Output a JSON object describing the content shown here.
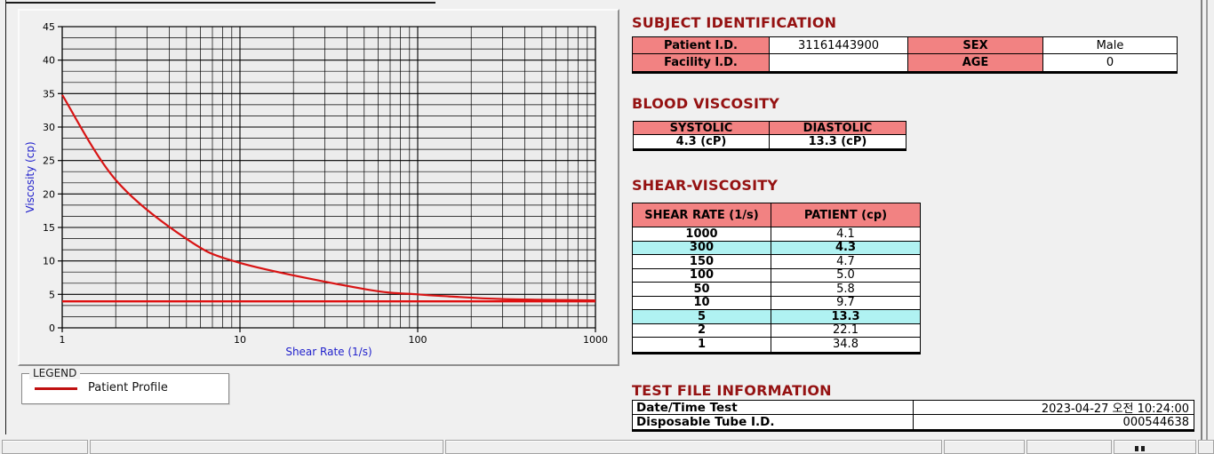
{
  "colors": {
    "title_red": "#951212",
    "header_pink": "#f28282",
    "highlight_cyan": "#b0f2f2",
    "curve_red": "#d81414",
    "axis_label_blue": "#2121cc"
  },
  "subject_identification": {
    "title": "SUBJECT IDENTIFICATION",
    "patient_id_label": "Patient I.D.",
    "patient_id_value": "31161443900",
    "sex_label": "SEX",
    "sex_value": "Male",
    "facility_id_label": "Facility I.D.",
    "facility_id_value": "",
    "age_label": "AGE",
    "age_value": "0"
  },
  "blood_viscosity": {
    "title": "BLOOD VISCOSITY",
    "systolic_label": "SYSTOLIC",
    "diastolic_label": "DIASTOLIC",
    "systolic_value": "4.3 (cP)",
    "diastolic_value": "13.3 (cP)"
  },
  "shear_viscosity": {
    "title": "SHEAR-VISCOSITY",
    "headers": [
      "SHEAR RATE (1/s)",
      "PATIENT (cp)"
    ],
    "rows": [
      {
        "shear_rate": "1000",
        "patient": "4.1",
        "highlight": false
      },
      {
        "shear_rate": "300",
        "patient": "4.3",
        "highlight": true
      },
      {
        "shear_rate": "150",
        "patient": "4.7",
        "highlight": false
      },
      {
        "shear_rate": "100",
        "patient": "5.0",
        "highlight": false
      },
      {
        "shear_rate": "50",
        "patient": "5.8",
        "highlight": false
      },
      {
        "shear_rate": "10",
        "patient": "9.7",
        "highlight": false
      },
      {
        "shear_rate": "5",
        "patient": "13.3",
        "highlight": true
      },
      {
        "shear_rate": "2",
        "patient": "22.1",
        "highlight": false
      },
      {
        "shear_rate": "1",
        "patient": "34.8",
        "highlight": false
      }
    ]
  },
  "test_file_information": {
    "title": "TEST FILE INFORMATION",
    "datetime_label": "Date/Time Test",
    "datetime_value": "2023-04-27  오전 10:24:00",
    "tube_label": "Disposable Tube I.D.",
    "tube_value": "000544638"
  },
  "legend": {
    "box_label": "LEGEND",
    "series_label": "Patient Profile"
  },
  "chart_data": {
    "type": "line",
    "x_scale": "log",
    "x": [
      1,
      2,
      5,
      10,
      50,
      100,
      150,
      300,
      1000
    ],
    "series": [
      {
        "name": "Patient Profile",
        "values": [
          34.8,
          22.1,
          13.3,
          9.7,
          5.8,
          5.0,
          4.7,
          4.3,
          4.1
        ],
        "color": "#d81414"
      }
    ],
    "baseline": {
      "y": 3.95,
      "color": "#e01010"
    },
    "title": "",
    "xlabel": "Shear Rate (1/s)",
    "ylabel": "Viscosity (cp)",
    "xlim": [
      1,
      1000
    ],
    "ylim": [
      0,
      45
    ],
    "x_ticks": [
      1,
      10,
      100,
      1000
    ],
    "y_ticks": [
      0,
      5,
      10,
      15,
      20,
      25,
      30,
      35,
      40,
      45
    ],
    "grid": true,
    "legend_position": "below-left"
  }
}
